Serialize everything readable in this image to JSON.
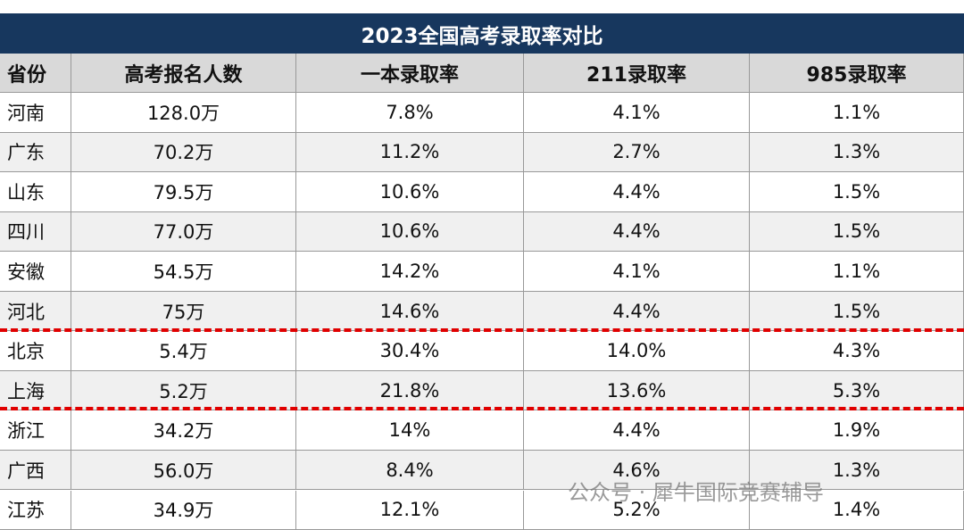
{
  "table": {
    "title": "2023全国高考录取率对比",
    "headers": [
      "省份",
      "高考报名人数",
      "一本录取率",
      "211录取率",
      "985录取率"
    ],
    "rows": [
      [
        "河南",
        "128.0万",
        "7.8%",
        "4.1%",
        "1.1%"
      ],
      [
        "广东",
        "70.2万",
        "11.2%",
        "2.7%",
        "1.3%"
      ],
      [
        "山东",
        "79.5万",
        "10.6%",
        "4.4%",
        "1.5%"
      ],
      [
        "四川",
        "77.0万",
        "10.6%",
        "4.4%",
        "1.5%"
      ],
      [
        "安徽",
        "54.5万",
        "14.2%",
        "4.1%",
        "1.1%"
      ],
      [
        "河北",
        "75万",
        "14.6%",
        "4.4%",
        "1.5%"
      ],
      [
        "北京",
        "5.4万",
        "30.4%",
        "14.0%",
        "4.3%"
      ],
      [
        "上海",
        "5.2万",
        "21.8%",
        "13.6%",
        "5.3%"
      ],
      [
        "浙江",
        "34.2万",
        "14%",
        "4.4%",
        "1.9%"
      ],
      [
        "广西",
        "56.0万",
        "8.4%",
        "4.6%",
        "1.3%"
      ],
      [
        "江苏",
        "34.9万",
        "12.1%",
        "5.2%",
        "1.4%"
      ]
    ]
  },
  "watermark": "公众号 · 犀牛国际竞赛辅导"
}
